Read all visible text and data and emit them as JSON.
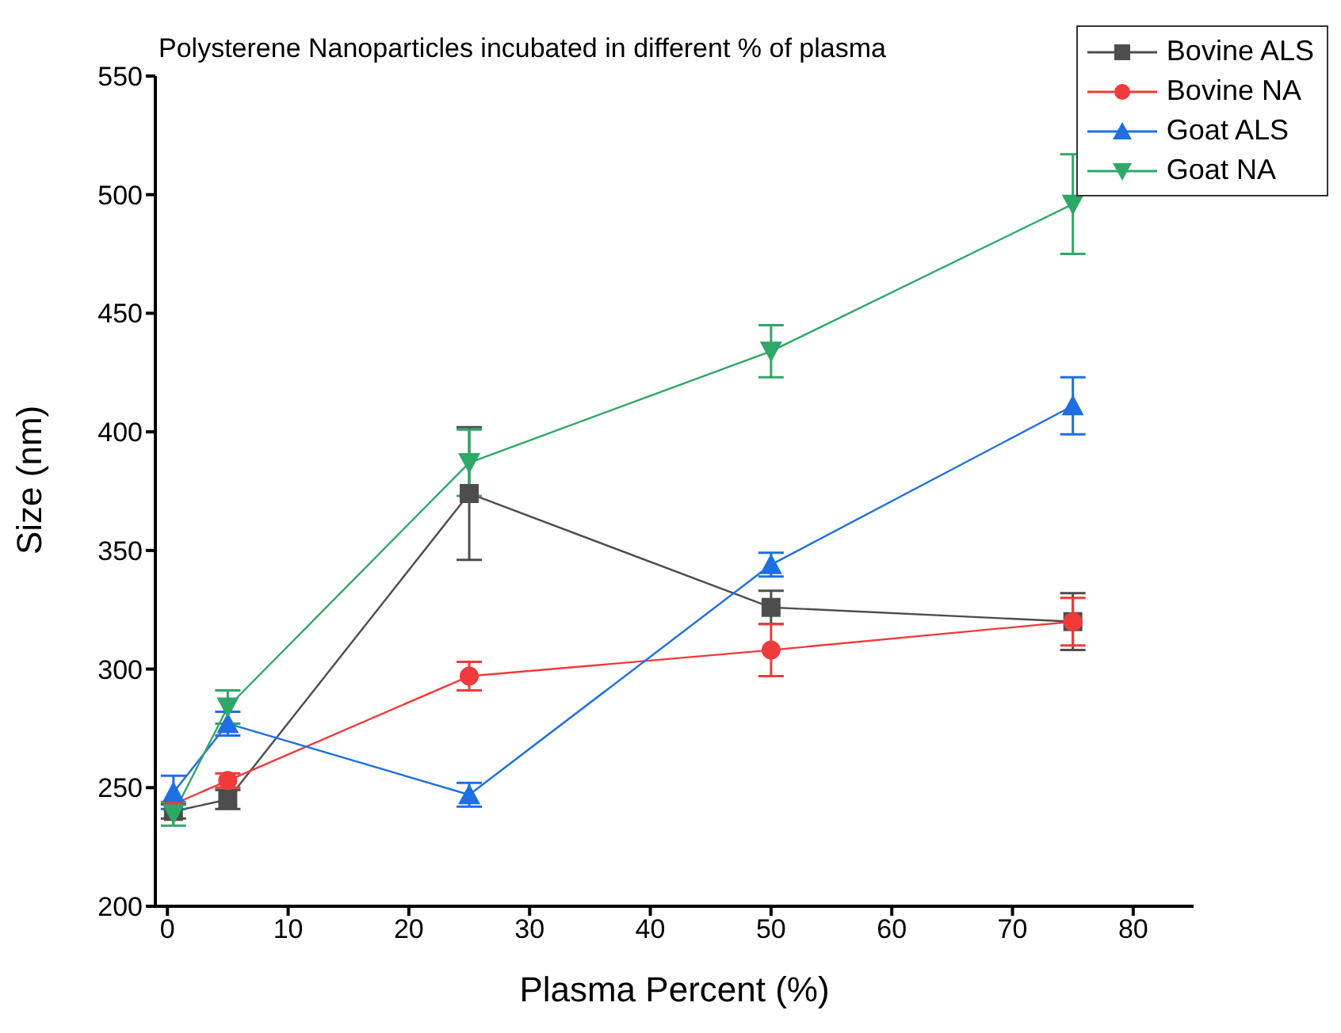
{
  "chart_data": {
    "type": "line",
    "title": "Polysterene Nanoparticles incubated in different % of plasma",
    "xlabel": "Plasma Percent (%)",
    "ylabel": "Size (nm)",
    "x": [
      0.5,
      5,
      25,
      50,
      75
    ],
    "series": [
      {
        "name": "Bovine ALS",
        "color": "#4d4d4d",
        "marker": "square",
        "values": [
          240,
          245,
          374,
          326,
          320
        ],
        "errors": [
          3,
          4,
          28,
          7,
          12
        ]
      },
      {
        "name": "Bovine NA",
        "color": "#ef3b3b",
        "marker": "circle",
        "values": [
          243,
          253,
          297,
          308,
          320
        ],
        "errors": [
          null,
          3,
          6,
          11,
          10
        ]
      },
      {
        "name": "Goat ALS",
        "color": "#1f6fe0",
        "marker": "triangle",
        "values": [
          248,
          277,
          247,
          344,
          411
        ],
        "errors": [
          7,
          5,
          5,
          5,
          12
        ]
      },
      {
        "name": "Goat NA",
        "color": "#2ea866",
        "marker": "triangle-down",
        "values": [
          239,
          284,
          387,
          434,
          496
        ],
        "errors": [
          5,
          7,
          14,
          11,
          21
        ]
      }
    ],
    "xlim": [
      -1,
      85
    ],
    "xticks": [
      0,
      10,
      20,
      30,
      40,
      50,
      60,
      70,
      80
    ],
    "ylim": [
      200,
      550
    ],
    "yticks": [
      200,
      250,
      300,
      350,
      400,
      450,
      500,
      550
    ],
    "grid": false,
    "legend": "top right",
    "line_style": "solid"
  }
}
